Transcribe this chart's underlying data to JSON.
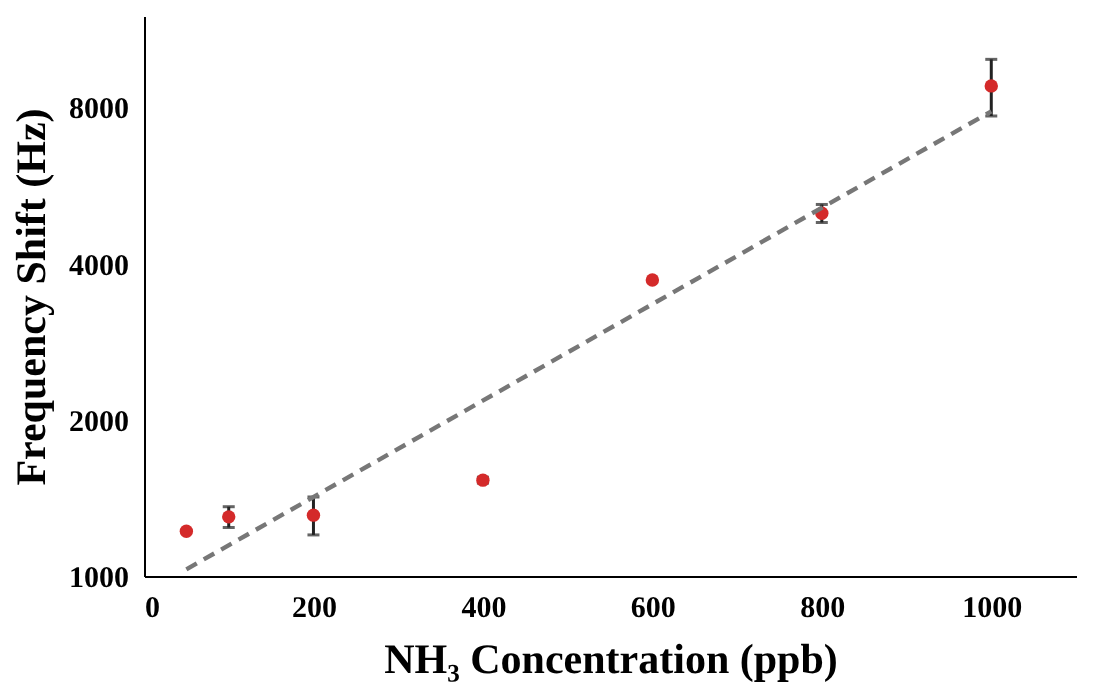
{
  "chart_data": {
    "type": "scatter",
    "xlabel": "NH₃ Concentration (ppb)",
    "ylabel": "Frequency Shift (Hz)",
    "log": "y",
    "xlim": [
      0,
      1100
    ],
    "xticks": [
      0,
      200,
      400,
      600,
      800,
      1000
    ],
    "ylim": [
      1000,
      12000
    ],
    "yticks": [
      1000,
      2000,
      4000,
      8000
    ],
    "grid": false,
    "series": [
      {
        "color": "#d42a2a",
        "marker": "circle",
        "x": [
          50,
          100,
          200,
          400,
          600,
          800,
          1000
        ],
        "values": [
          1220,
          1300,
          1310,
          1530,
          3720,
          5000,
          8800
        ],
        "errors": [
          null,
          [
            1240,
            1360
          ],
          [
            1200,
            1420
          ],
          [
            1510,
            1550
          ],
          null,
          [
            4800,
            5200
          ],
          [
            7700,
            9900
          ]
        ]
      },
      {
        "type": "line",
        "color": "#777777",
        "line_style": "dashed",
        "x": [
          50,
          1000
        ],
        "values": [
          1030,
          7860
        ]
      }
    ]
  }
}
